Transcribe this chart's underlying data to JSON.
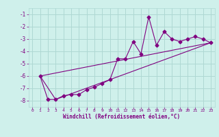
{
  "xlabel": "Windchill (Refroidissement éolien,°C)",
  "ylabel": "",
  "background_color": "#cff0eb",
  "grid_color": "#aed8d3",
  "line_color": "#800080",
  "text_color": "#800080",
  "xlim": [
    -0.5,
    23.5
  ],
  "ylim": [
    -8.5,
    -0.5
  ],
  "xticks": [
    0,
    1,
    2,
    3,
    4,
    5,
    6,
    7,
    8,
    9,
    10,
    11,
    12,
    13,
    14,
    15,
    16,
    17,
    18,
    19,
    20,
    21,
    22,
    23
  ],
  "yticks": [
    -8,
    -7,
    -6,
    -5,
    -4,
    -3,
    -2,
    -1
  ],
  "series1_x": [
    1,
    2,
    3,
    4,
    5,
    6,
    7,
    8,
    9,
    10,
    11,
    12,
    13,
    14,
    15,
    16,
    17,
    18,
    19,
    20,
    21,
    22,
    23
  ],
  "series1_y": [
    -6.0,
    -7.9,
    -7.9,
    -7.6,
    -7.5,
    -7.5,
    -7.1,
    -6.9,
    -6.6,
    -6.3,
    -4.6,
    -4.6,
    -3.2,
    -4.2,
    -1.2,
    -3.5,
    -2.4,
    -3.0,
    -3.2,
    -3.0,
    -2.8,
    -3.0,
    -3.3
  ],
  "series2_x": [
    1,
    23
  ],
  "series2_y": [
    -6.0,
    -3.3
  ],
  "series3_x": [
    1,
    3,
    23
  ],
  "series3_y": [
    -6.0,
    -7.9,
    -3.3
  ],
  "marker": "D",
  "markersize": 2.5,
  "linewidth": 0.8
}
